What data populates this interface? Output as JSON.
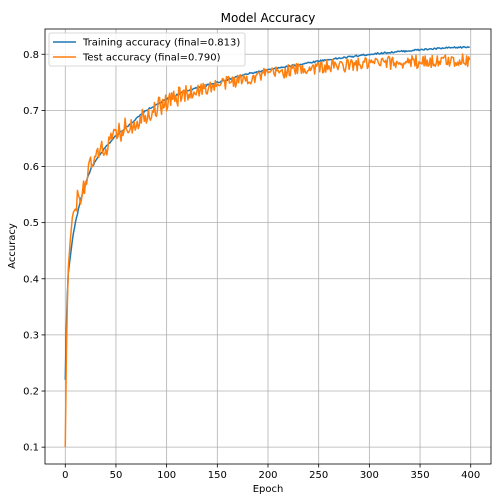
{
  "chart_data": {
    "type": "line",
    "title": "Model Accuracy",
    "xlabel": "Epoch",
    "ylabel": "Accuracy",
    "xlim": [
      -20,
      420
    ],
    "ylim": [
      0.07,
      0.845
    ],
    "xticks": [
      0,
      50,
      100,
      150,
      200,
      250,
      300,
      350,
      400
    ],
    "yticks": [
      0.1,
      0.2,
      0.3,
      0.4,
      0.5,
      0.6,
      0.7,
      0.8
    ],
    "grid": true,
    "legend_position": "top-left",
    "epochs": 400,
    "series": [
      {
        "name": "Training accuracy (final=0.813)",
        "color": "#1f77b4",
        "anchors": [
          [
            0,
            0.22
          ],
          [
            1,
            0.31
          ],
          [
            2,
            0.37
          ],
          [
            3,
            0.41
          ],
          [
            5,
            0.44
          ],
          [
            7,
            0.47
          ],
          [
            10,
            0.5
          ],
          [
            15,
            0.54
          ],
          [
            20,
            0.57
          ],
          [
            25,
            0.595
          ],
          [
            30,
            0.61
          ],
          [
            40,
            0.635
          ],
          [
            50,
            0.655
          ],
          [
            60,
            0.67
          ],
          [
            70,
            0.685
          ],
          [
            80,
            0.7
          ],
          [
            90,
            0.71
          ],
          [
            100,
            0.72
          ],
          [
            120,
            0.735
          ],
          [
            140,
            0.745
          ],
          [
            160,
            0.755
          ],
          [
            180,
            0.765
          ],
          [
            200,
            0.772
          ],
          [
            225,
            0.78
          ],
          [
            250,
            0.788
          ],
          [
            275,
            0.794
          ],
          [
            300,
            0.8
          ],
          [
            325,
            0.804
          ],
          [
            350,
            0.808
          ],
          [
            375,
            0.811
          ],
          [
            399,
            0.813
          ]
        ]
      },
      {
        "name": "Test accuracy (final=0.790)",
        "color": "#ff7f0e",
        "anchors": [
          [
            0,
            0.1
          ],
          [
            1,
            0.25
          ],
          [
            2,
            0.35
          ],
          [
            3,
            0.42
          ],
          [
            5,
            0.47
          ],
          [
            7,
            0.51
          ],
          [
            10,
            0.535
          ],
          [
            15,
            0.55
          ],
          [
            20,
            0.575
          ],
          [
            25,
            0.6
          ],
          [
            30,
            0.615
          ],
          [
            40,
            0.635
          ],
          [
            50,
            0.655
          ],
          [
            60,
            0.67
          ],
          [
            70,
            0.68
          ],
          [
            80,
            0.695
          ],
          [
            90,
            0.705
          ],
          [
            100,
            0.715
          ],
          [
            120,
            0.73
          ],
          [
            140,
            0.74
          ],
          [
            160,
            0.75
          ],
          [
            180,
            0.757
          ],
          [
            200,
            0.765
          ],
          [
            225,
            0.772
          ],
          [
            250,
            0.777
          ],
          [
            275,
            0.78
          ],
          [
            300,
            0.783
          ],
          [
            325,
            0.785
          ],
          [
            350,
            0.787
          ],
          [
            375,
            0.788
          ],
          [
            399,
            0.79
          ]
        ]
      }
    ]
  }
}
